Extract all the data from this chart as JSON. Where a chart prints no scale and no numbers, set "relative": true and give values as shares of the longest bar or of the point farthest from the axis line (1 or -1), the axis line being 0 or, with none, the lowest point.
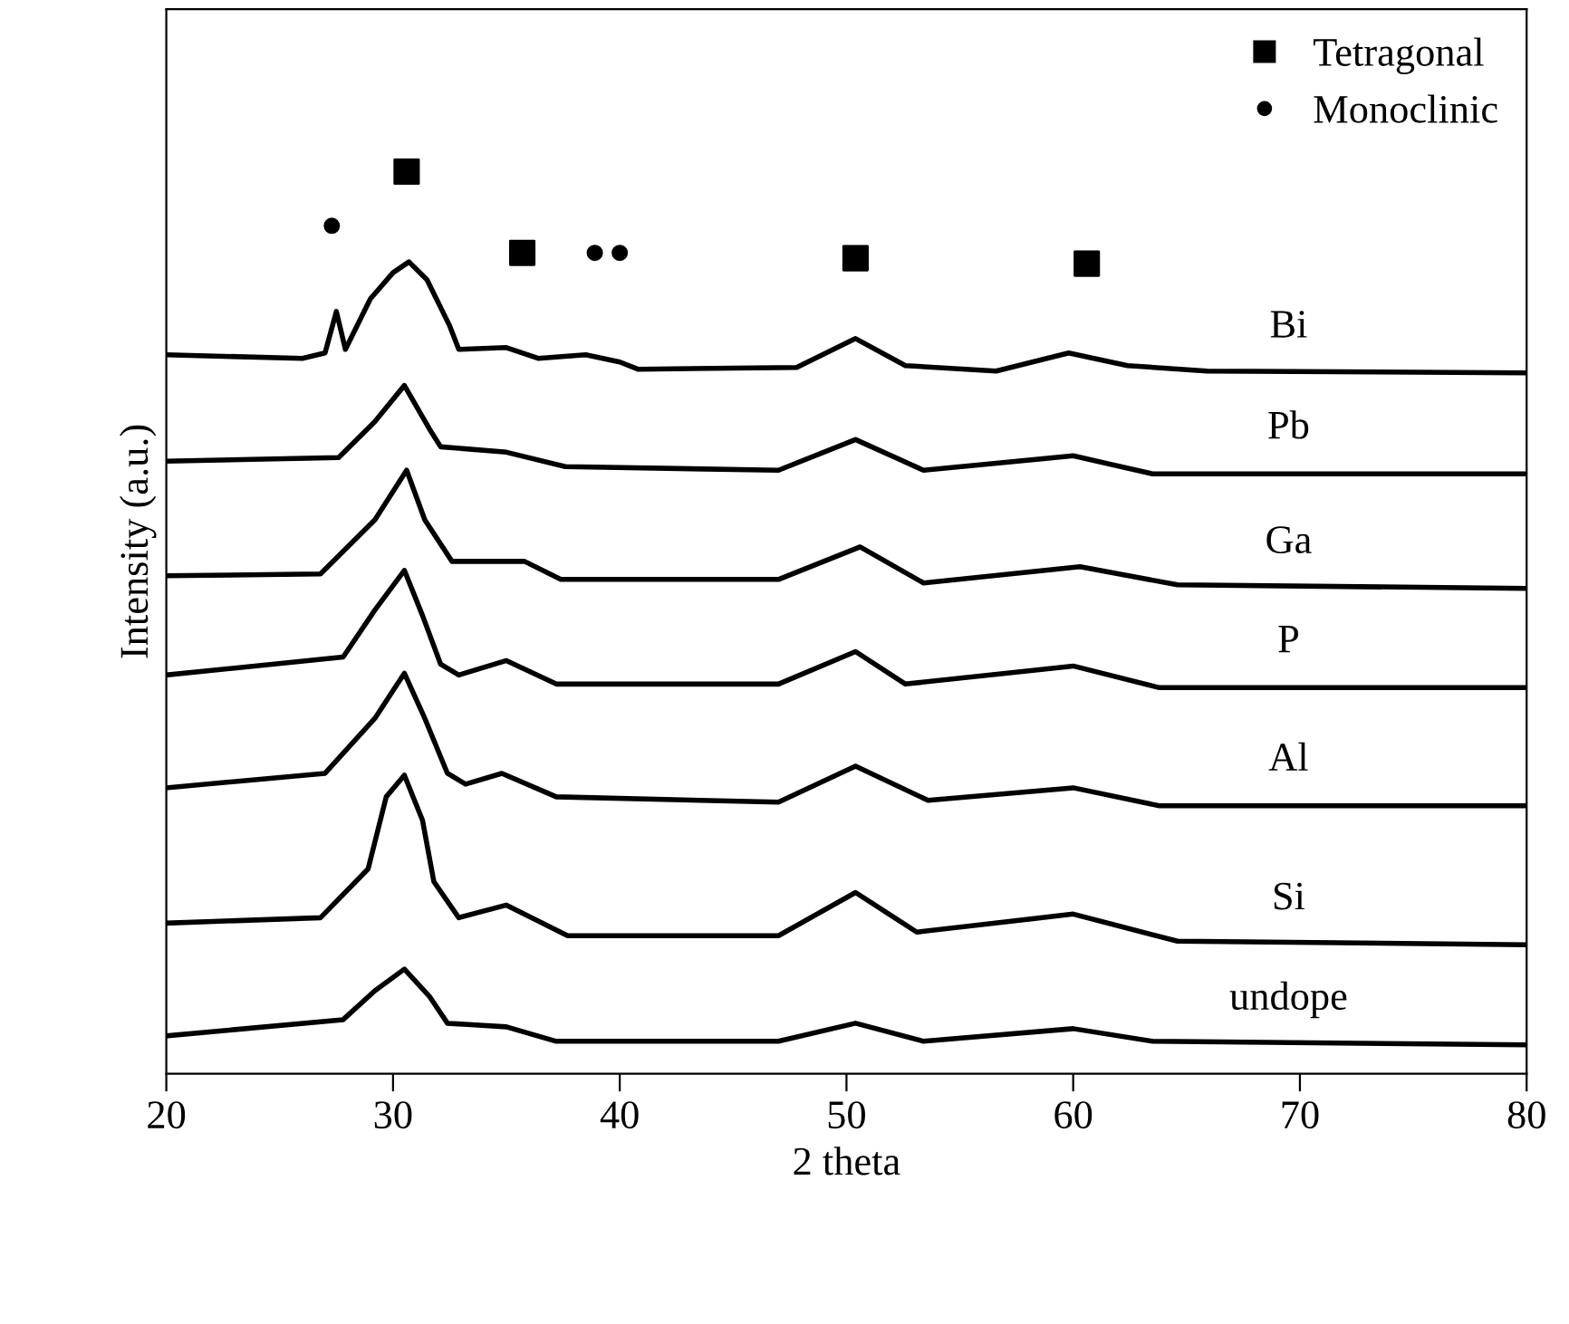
{
  "chart_data": {
    "type": "line",
    "relative": true,
    "xlabel": "2 theta",
    "ylabel": "Intensity (a.u.)",
    "xlim": [
      20,
      80
    ],
    "xticks": [
      20,
      30,
      40,
      50,
      60,
      70,
      80
    ],
    "grid": false,
    "legend": "top right",
    "line_style": "solid",
    "marker": "none",
    "series": [
      {
        "name": "Bi",
        "color": "#000000",
        "x": [
          20,
          26,
          27,
          27.5,
          27.9,
          29,
          30,
          30.7,
          31.5,
          32.5,
          32.9,
          35,
          36.4,
          38.5,
          40,
          40.8,
          47.8,
          50.4,
          52.6,
          56.6,
          59.8,
          62.4,
          65.9,
          80
        ],
        "values": [
          0.797,
          0.793,
          0.799,
          0.845,
          0.803,
          0.859,
          0.888,
          0.9,
          0.88,
          0.829,
          0.803,
          0.805,
          0.793,
          0.797,
          0.789,
          0.781,
          0.783,
          0.815,
          0.785,
          0.779,
          0.799,
          0.785,
          0.779,
          0.777
        ]
      },
      {
        "name": "Pb",
        "color": "#000000",
        "x": [
          20,
          27.6,
          29.2,
          30.5,
          31.6,
          32.1,
          35,
          37.6,
          47,
          50.4,
          53.4,
          60,
          63.5,
          80
        ],
        "values": [
          0.679,
          0.683,
          0.723,
          0.763,
          0.715,
          0.695,
          0.689,
          0.673,
          0.669,
          0.703,
          0.669,
          0.685,
          0.665,
          0.665
        ]
      },
      {
        "name": "Ga",
        "color": "#000000",
        "x": [
          20,
          26.8,
          29.2,
          30.6,
          31.4,
          32.6,
          35,
          35.8,
          37.4,
          47,
          50.6,
          53.4,
          60.3,
          64.6,
          80
        ],
        "values": [
          0.552,
          0.554,
          0.614,
          0.669,
          0.614,
          0.568,
          0.568,
          0.568,
          0.548,
          0.548,
          0.584,
          0.544,
          0.562,
          0.542,
          0.538
        ]
      },
      {
        "name": "P",
        "color": "#000000",
        "x": [
          20,
          27.8,
          29.2,
          30.5,
          31.3,
          32.1,
          32.9,
          35,
          37.2,
          47,
          50.4,
          52.6,
          60,
          63.8,
          80
        ],
        "values": [
          0.442,
          0.462,
          0.514,
          0.558,
          0.508,
          0.454,
          0.442,
          0.458,
          0.432,
          0.432,
          0.468,
          0.432,
          0.452,
          0.428,
          0.428
        ]
      },
      {
        "name": "Al",
        "color": "#000000",
        "x": [
          20,
          27,
          29.2,
          30.5,
          31.4,
          32.4,
          33.2,
          34.8,
          37.2,
          47,
          50.4,
          53.6,
          60,
          63.8,
          80
        ],
        "values": [
          0.317,
          0.333,
          0.394,
          0.444,
          0.394,
          0.333,
          0.321,
          0.333,
          0.307,
          0.301,
          0.341,
          0.303,
          0.317,
          0.297,
          0.297
        ]
      },
      {
        "name": "Si",
        "color": "#000000",
        "x": [
          20,
          26.8,
          28.9,
          29.7,
          30.5,
          31.3,
          31.8,
          32.9,
          35,
          37.7,
          47,
          50.4,
          53.1,
          60,
          64.6,
          80
        ],
        "values": [
          0.167,
          0.173,
          0.227,
          0.307,
          0.331,
          0.281,
          0.213,
          0.173,
          0.187,
          0.153,
          0.153,
          0.201,
          0.157,
          0.177,
          0.147,
          0.143
        ]
      },
      {
        "name": "undope",
        "color": "#000000",
        "x": [
          20,
          27.8,
          29.2,
          30.5,
          31.6,
          32.4,
          35,
          37.2,
          47,
          50.4,
          53.4,
          60,
          63.5,
          80
        ],
        "values": [
          0.042,
          0.06,
          0.092,
          0.116,
          0.086,
          0.056,
          0.052,
          0.036,
          0.036,
          0.056,
          0.036,
          0.05,
          0.036,
          0.032
        ]
      },
      {
        "name": "Tetragonal",
        "type": "scatter",
        "marker": "square",
        "color": "#000000",
        "x": [
          30.6,
          35.7,
          50.4,
          60.6
        ],
        "values": [
          1.0,
          0.91,
          0.904,
          0.898
        ]
      },
      {
        "name": "Monoclinic",
        "type": "scatter",
        "marker": "circle",
        "color": "#000000",
        "x": [
          27.3,
          38.9,
          40.0
        ],
        "values": [
          0.94,
          0.91,
          0.91
        ]
      }
    ]
  }
}
